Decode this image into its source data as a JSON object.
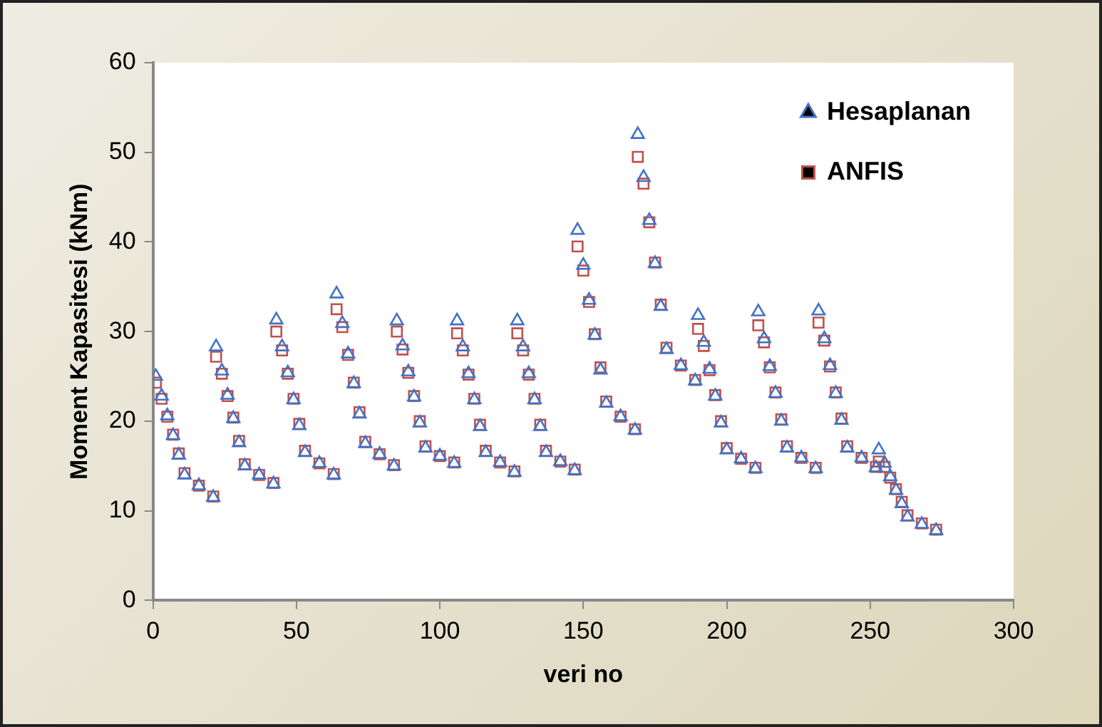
{
  "chart_data": {
    "type": "scatter",
    "xlabel": "veri no",
    "ylabel": "Moment Kapasitesi (kNm)",
    "x": [
      1,
      3,
      5,
      7,
      9,
      11,
      16,
      21,
      22,
      24,
      26,
      28,
      30,
      32,
      37,
      42,
      43,
      45,
      47,
      49,
      51,
      53,
      58,
      63,
      64,
      66,
      68,
      70,
      72,
      74,
      79,
      84,
      85,
      87,
      89,
      91,
      93,
      95,
      100,
      105,
      106,
      108,
      110,
      112,
      114,
      116,
      121,
      126,
      127,
      129,
      131,
      133,
      135,
      137,
      142,
      147,
      148,
      150,
      152,
      154,
      156,
      158,
      163,
      168,
      169,
      171,
      173,
      175,
      177,
      179,
      184,
      189,
      190,
      192,
      194,
      196,
      198,
      200,
      205,
      210,
      211,
      213,
      215,
      217,
      219,
      221,
      226,
      231,
      232,
      234,
      236,
      238,
      240,
      242,
      247,
      252,
      253,
      255,
      257,
      259,
      261,
      263,
      268,
      273
    ],
    "series": [
      {
        "name": "Hesaplanan",
        "color": "#4472c4",
        "marker": "triangle",
        "values": [
          25,
          22.8,
          20.6,
          18.4,
          16.2,
          14,
          12.8,
          11.5,
          28.3,
          25.6,
          22.9,
          20.3,
          17.6,
          15,
          14,
          13,
          31.3,
          28.3,
          25.4,
          22.4,
          19.5,
          16.5,
          15.3,
          14,
          34.2,
          30.9,
          27.5,
          24.2,
          20.8,
          17.5,
          16.3,
          15,
          31.2,
          28.4,
          25.5,
          22.7,
          19.8,
          17,
          16.1,
          15.3,
          31.2,
          28.3,
          25.3,
          22.4,
          19.4,
          16.5,
          15.4,
          14.3,
          31.2,
          28.3,
          25.3,
          22.4,
          19.4,
          16.5,
          15.5,
          14.5,
          41.3,
          37.4,
          33.5,
          29.6,
          25.7,
          22,
          20.5,
          19,
          52,
          47.2,
          42.4,
          37.6,
          32.8,
          28,
          26.2,
          24.5,
          31.8,
          28.8,
          25.8,
          22.8,
          19.8,
          16.8,
          15.8,
          14.7,
          32.2,
          29.2,
          26.1,
          23.1,
          20,
          17,
          15.9,
          14.7,
          32.3,
          29.2,
          26.2,
          23.1,
          20.1,
          17,
          15.9,
          14.8,
          16.8,
          15.3,
          13.8,
          12.3,
          10.8,
          9.3,
          8.5,
          7.8
        ]
      },
      {
        "name": "ANFIS",
        "color": "#c0504d",
        "marker": "square",
        "values": [
          24.3,
          22.5,
          20.5,
          18.5,
          16.4,
          14.2,
          12.8,
          11.6,
          27.2,
          25.3,
          22.8,
          20.4,
          17.8,
          15.2,
          14,
          13.1,
          30,
          27.9,
          25.3,
          22.5,
          19.7,
          16.7,
          15.3,
          14.1,
          32.5,
          30.5,
          27.4,
          24.3,
          21,
          17.7,
          16.3,
          15.1,
          30,
          28,
          25.4,
          22.8,
          20,
          17.2,
          16.1,
          15.4,
          29.8,
          27.9,
          25.2,
          22.5,
          19.6,
          16.7,
          15.4,
          14.4,
          29.8,
          27.9,
          25.2,
          22.5,
          19.6,
          16.7,
          15.5,
          14.6,
          39.5,
          36.8,
          33.3,
          29.7,
          26,
          22.2,
          20.5,
          19.1,
          49.5,
          46.5,
          42.2,
          37.7,
          33,
          28.2,
          26.2,
          24.6,
          30.3,
          28.4,
          25.7,
          22.9,
          20,
          17,
          15.8,
          14.8,
          30.7,
          28.8,
          26,
          23.2,
          20.2,
          17.2,
          15.9,
          14.8,
          31,
          29,
          26.1,
          23.2,
          20.3,
          17.2,
          15.9,
          14.9,
          15.5,
          14.9,
          13.7,
          12.4,
          11,
          9.5,
          8.6,
          7.9
        ]
      }
    ],
    "xlim": [
      0,
      300
    ],
    "xticks": [
      0,
      50,
      100,
      150,
      200,
      250,
      300
    ],
    "ylim": [
      0,
      60
    ],
    "yticks": [
      0,
      10,
      20,
      30,
      40,
      50,
      60
    ],
    "grid": false,
    "legend": "top right"
  }
}
